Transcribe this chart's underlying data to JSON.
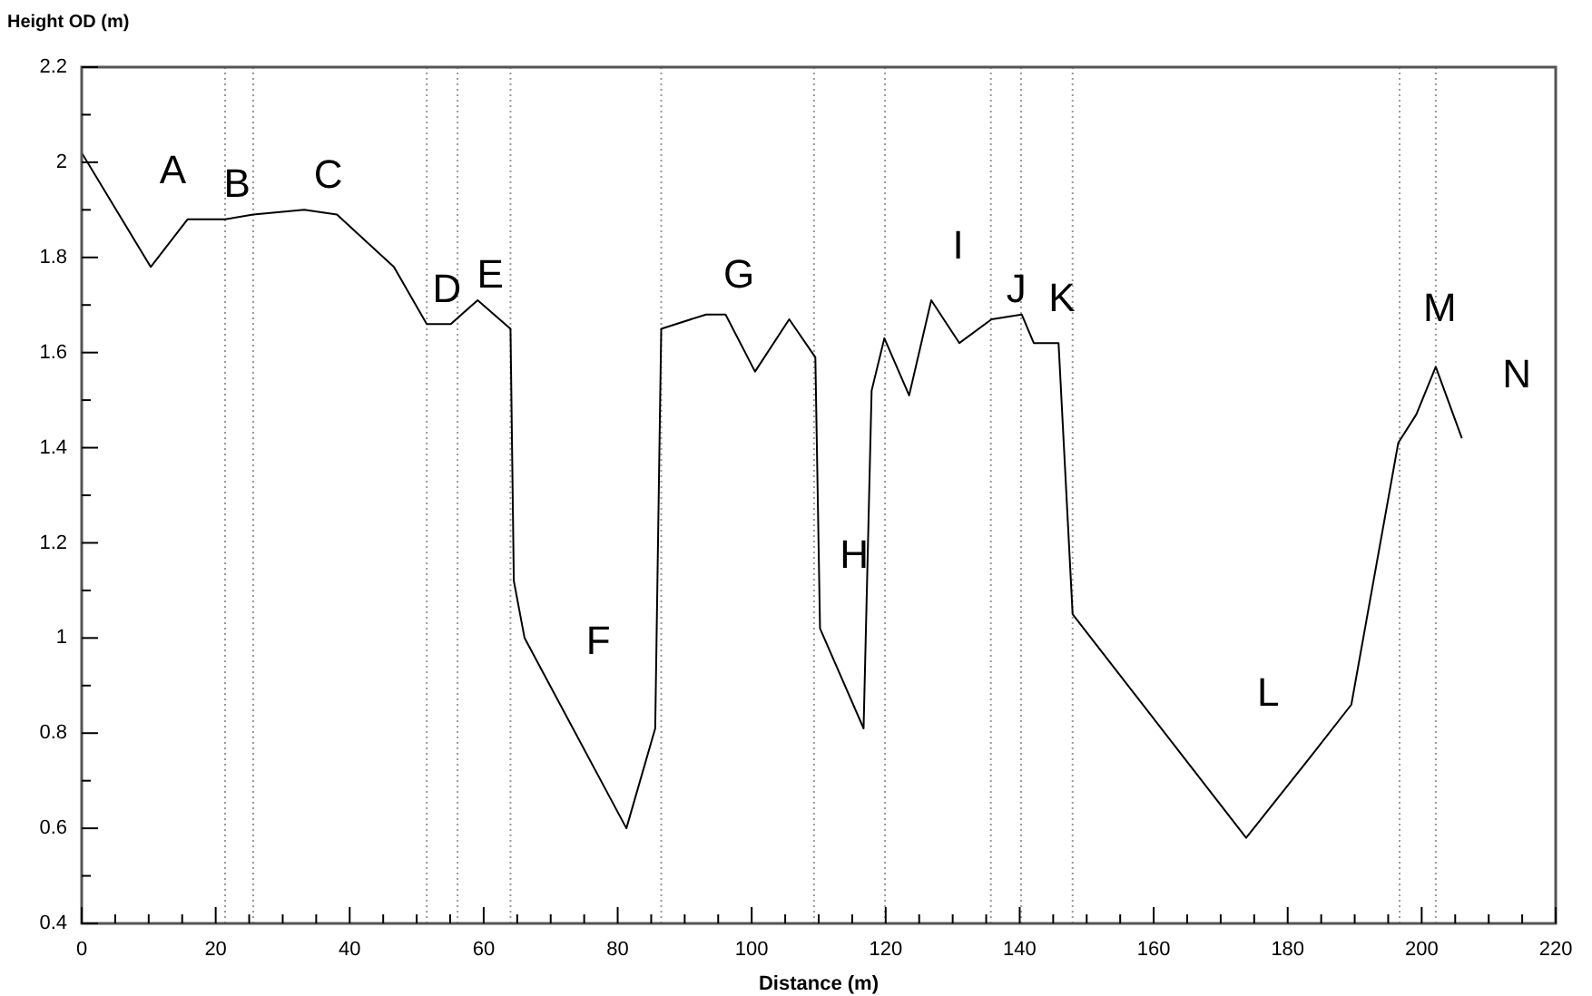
{
  "chart_data": {
    "type": "line",
    "xlabel": "Distance (m)",
    "ylabel": "Height OD (m)",
    "xlim": [
      0,
      220
    ],
    "ylim": [
      0.4,
      2.2
    ],
    "xticks": [
      0,
      {
        "value": 5,
        "label": null
      },
      {
        "value": 10,
        "label": null
      },
      {
        "value": 15,
        "label": null
      },
      20,
      {
        "value": 25,
        "label": null
      },
      {
        "value": 30,
        "label": null
      },
      {
        "value": 35,
        "label": null
      },
      40,
      {
        "value": 45,
        "label": null
      },
      {
        "value": 50,
        "label": null
      },
      {
        "value": 55,
        "label": null
      },
      60,
      {
        "value": 65,
        "label": null
      },
      {
        "value": 70,
        "label": null
      },
      {
        "value": 75,
        "label": null
      },
      80,
      {
        "value": 85,
        "label": null
      },
      {
        "value": 90,
        "label": null
      },
      {
        "value": 95,
        "label": null
      },
      100,
      {
        "value": 105,
        "label": null
      },
      {
        "value": 110,
        "label": null
      },
      {
        "value": 115,
        "label": null
      },
      120,
      {
        "value": 125,
        "label": null
      },
      {
        "value": 130,
        "label": null
      },
      {
        "value": 135,
        "label": null
      },
      140,
      {
        "value": 145,
        "label": null
      },
      {
        "value": 150,
        "label": null
      },
      {
        "value": 155,
        "label": null
      },
      160,
      {
        "value": 165,
        "label": null
      },
      {
        "value": 170,
        "label": null
      },
      {
        "value": 175,
        "label": null
      },
      180,
      {
        "value": 185,
        "label": null
      },
      {
        "value": 190,
        "label": null
      },
      {
        "value": 195,
        "label": null
      },
      200,
      {
        "value": 205,
        "label": null
      },
      {
        "value": 210,
        "label": null
      },
      {
        "value": 215,
        "label": null
      },
      220
    ],
    "yticks": [
      0.4,
      {
        "value": 0.5,
        "label": null
      },
      0.6,
      {
        "value": 0.7,
        "label": null
      },
      0.8,
      {
        "value": 0.9,
        "label": null
      },
      1,
      {
        "value": 1.1,
        "label": null
      },
      1.2,
      {
        "value": 1.3,
        "label": null
      },
      1.4,
      {
        "value": 1.5,
        "label": null
      },
      1.6,
      {
        "value": 1.7,
        "label": null
      },
      1.8,
      {
        "value": 1.9,
        "label": null
      },
      2,
      {
        "value": 2.1,
        "label": null
      },
      2.2
    ],
    "marker": "none",
    "line_style": "solid",
    "legend": false,
    "series": [
      {
        "color": "#000000",
        "x": [
          0,
          10.3,
          15.8,
          21.4,
          25.6,
          33.2,
          38.1,
          46.6,
          51.5,
          55.1,
          59.1,
          64.0,
          64.5,
          66.1,
          81.3,
          85.6,
          86.5,
          93.2,
          96.1,
          100.5,
          105.6,
          109.5,
          110.2,
          116.7,
          117.9,
          119.8,
          123.5,
          126.8,
          131.0,
          135.8,
          140.3,
          142.1,
          145.8,
          147.9,
          173.8,
          183.4,
          189.5,
          196.5,
          199.2,
          202.1,
          206.0
        ],
        "values": [
          2.02,
          1.78,
          1.88,
          1.88,
          1.89,
          1.9,
          1.89,
          1.78,
          1.66,
          1.66,
          1.71,
          1.65,
          1.12,
          1.0,
          0.6,
          0.81,
          1.65,
          1.68,
          1.68,
          1.56,
          1.67,
          1.59,
          1.02,
          0.81,
          1.52,
          1.63,
          1.51,
          1.71,
          1.62,
          1.67,
          1.68,
          1.62,
          1.62,
          1.05,
          0.58,
          0.75,
          0.86,
          1.41,
          1.47,
          1.57,
          1.42
        ]
      }
    ],
    "ref_lines": [
      {
        "axis": "x",
        "value": 21.4,
        "color": "#999999",
        "line_style": "dotted"
      },
      {
        "axis": "x",
        "value": 25.6,
        "color": "#999999",
        "line_style": "dotted"
      },
      {
        "axis": "x",
        "value": 51.5,
        "color": "#999999",
        "line_style": "dotted"
      },
      {
        "axis": "x",
        "value": 56.1,
        "color": "#999999",
        "line_style": "dotted"
      },
      {
        "axis": "x",
        "value": 64.0,
        "color": "#999999",
        "line_style": "dotted"
      },
      {
        "axis": "x",
        "value": 86.5,
        "color": "#999999",
        "line_style": "dotted"
      },
      {
        "axis": "x",
        "value": 109.3,
        "color": "#999999",
        "line_style": "dotted"
      },
      {
        "axis": "x",
        "value": 119.9,
        "color": "#999999",
        "line_style": "dotted"
      },
      {
        "axis": "x",
        "value": 135.7,
        "color": "#999999",
        "line_style": "dotted"
      },
      {
        "axis": "x",
        "value": 140.2,
        "color": "#999999",
        "line_style": "dotted"
      },
      {
        "axis": "x",
        "value": 147.9,
        "color": "#999999",
        "line_style": "dotted"
      },
      {
        "axis": "x",
        "value": 196.7,
        "color": "#999999",
        "line_style": "dotted"
      },
      {
        "axis": "x",
        "value": 202.1,
        "color": "#999999",
        "line_style": "dotted"
      }
    ],
    "annotations": [
      "A",
      "B",
      "C",
      "D",
      "E",
      "F",
      "G",
      "H",
      "I",
      "J",
      "K",
      "L",
      "M",
      "N"
    ]
  }
}
